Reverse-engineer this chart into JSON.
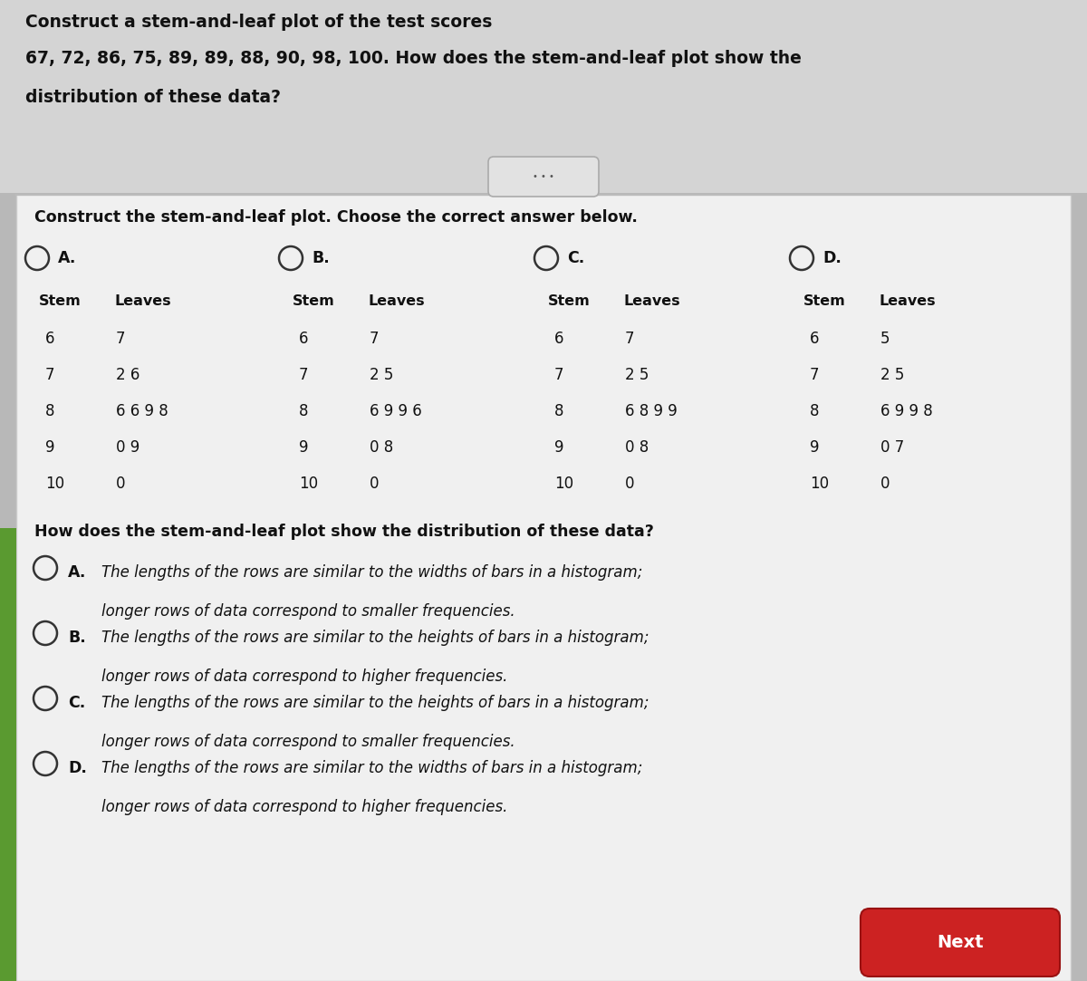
{
  "title_line1": "Construct a stem-and-leaf plot of the test scores",
  "title_line2": "67, 72, 86, 75, 89, 89, 88, 90, 98, 100. How does the stem-and-leaf plot show the",
  "title_line3": "distribution of these data?",
  "section1_title": "Construct the stem-and-leaf plot. Choose the correct answer below.",
  "tables": [
    {
      "label": "A.",
      "stem": [
        "6",
        "7",
        "8",
        "9",
        "10"
      ],
      "leaves": [
        "7",
        "2 6",
        "6 6 9 8",
        "0 9",
        "0"
      ]
    },
    {
      "label": "B.",
      "stem": [
        "6",
        "7",
        "8",
        "9",
        "10"
      ],
      "leaves": [
        "7",
        "2 5",
        "6 9 9 6",
        "0 8",
        "0"
      ]
    },
    {
      "label": "C.",
      "stem": [
        "6",
        "7",
        "8",
        "9",
        "10"
      ],
      "leaves": [
        "7",
        "2 5",
        "6 8 9 9",
        "0 8",
        "0"
      ]
    },
    {
      "label": "D.",
      "stem": [
        "6",
        "7",
        "8",
        "9",
        "10"
      ],
      "leaves": [
        "5",
        "2 5",
        "6 9 9 8",
        "0 7",
        "0"
      ]
    }
  ],
  "section2_title": "How does the stem-and-leaf plot show the distribution of these data?",
  "answers": [
    {
      "label": "A.",
      "line1": "The lengths of the rows are similar to the widths of bars in a histogram;",
      "line2": "longer rows of data correspond to smaller frequencies."
    },
    {
      "label": "B.",
      "line1": "The lengths of the rows are similar to the heights of bars in a histogram;",
      "line2": "longer rows of data correspond to higher frequencies."
    },
    {
      "label": "C.",
      "line1": "The lengths of the rows are similar to the heights of bars in a histogram;",
      "line2": "longer rows of data correspond to smaller frequencies."
    },
    {
      "label": "D.",
      "line1": "The lengths of the rows are similar to the widths of bars in a histogram;",
      "line2": "longer rows of data correspond to higher frequencies."
    }
  ],
  "next_button_color": "#cc2222",
  "next_button_text": "Next",
  "header_bg": "#d4d4d4",
  "main_bg": "#f0f0f0",
  "fig_bg": "#b8b8b8"
}
